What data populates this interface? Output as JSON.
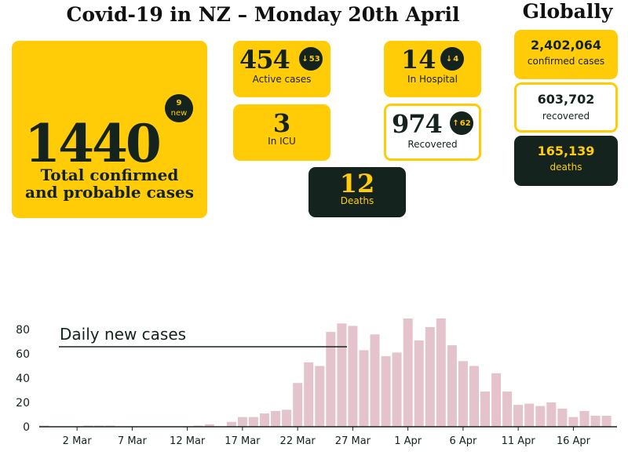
{
  "header": {
    "title": "Covid-19 in NZ – Monday 20th April",
    "global_title": "Globally"
  },
  "nz": {
    "total": {
      "value": "1440",
      "label_line1": "Total confirmed",
      "label_line2": "and probable cases",
      "new_value": "9",
      "new_label": "new"
    },
    "active": {
      "value": "454",
      "change": "53",
      "label": "Active cases"
    },
    "hospital": {
      "value": "14",
      "change": "4",
      "label": "In Hospital"
    },
    "icu": {
      "value": "3",
      "label": "In ICU"
    },
    "recovered": {
      "value": "974",
      "change": "62",
      "label": "Recovered"
    },
    "deaths": {
      "value": "12",
      "label": "Deaths"
    }
  },
  "global": {
    "confirmed": {
      "value": "2,402,064",
      "label": "confirmed cases"
    },
    "recovered": {
      "value": "603,702",
      "label": "recovered"
    },
    "deaths": {
      "value": "165,139",
      "label": "deaths"
    }
  },
  "colors": {
    "accent": "#ffcc07",
    "dark": "#14231e",
    "bar": "#e5c3cc"
  },
  "chart_data": {
    "type": "bar",
    "annotation": "Daily new cases",
    "ylim": [
      0,
      95
    ],
    "yticks": [
      0,
      20,
      40,
      60,
      80
    ],
    "xtick_labels": [
      "2 Mar",
      "7 Mar",
      "12 Mar",
      "17 Mar",
      "22 Mar",
      "27 Mar",
      "1 Apr",
      "6 Apr",
      "11 Apr",
      "16 Apr"
    ],
    "categories": [
      "28 Feb",
      "29 Feb",
      "1 Mar",
      "2 Mar",
      "3 Mar",
      "4 Mar",
      "5 Mar",
      "6 Mar",
      "7 Mar",
      "8 Mar",
      "9 Mar",
      "10 Mar",
      "11 Mar",
      "12 Mar",
      "13 Mar",
      "14 Mar",
      "15 Mar",
      "16 Mar",
      "17 Mar",
      "18 Mar",
      "19 Mar",
      "20 Mar",
      "21 Mar",
      "22 Mar",
      "23 Mar",
      "24 Mar",
      "25 Mar",
      "26 Mar",
      "27 Mar",
      "28 Mar",
      "29 Mar",
      "30 Mar",
      "31 Mar",
      "1 Apr",
      "2 Apr",
      "3 Apr",
      "4 Apr",
      "5 Apr",
      "6 Apr",
      "7 Apr",
      "8 Apr",
      "9 Apr",
      "10 Apr",
      "11 Apr",
      "12 Apr",
      "13 Apr",
      "14 Apr",
      "15 Apr",
      "16 Apr",
      "17 Apr",
      "18 Apr",
      "19 Apr",
      "20 Apr"
    ],
    "values": [
      1,
      0,
      0,
      0,
      1,
      1,
      1,
      0,
      0,
      0,
      0,
      0,
      0,
      0,
      1,
      2,
      0,
      4,
      8,
      8,
      11,
      13,
      14,
      36,
      53,
      50,
      78,
      85,
      83,
      63,
      76,
      58,
      61,
      89,
      71,
      82,
      89,
      67,
      54,
      50,
      29,
      44,
      29,
      18,
      19,
      17,
      20,
      15,
      8,
      13,
      9,
      9,
      0
    ],
    "grid": false
  }
}
